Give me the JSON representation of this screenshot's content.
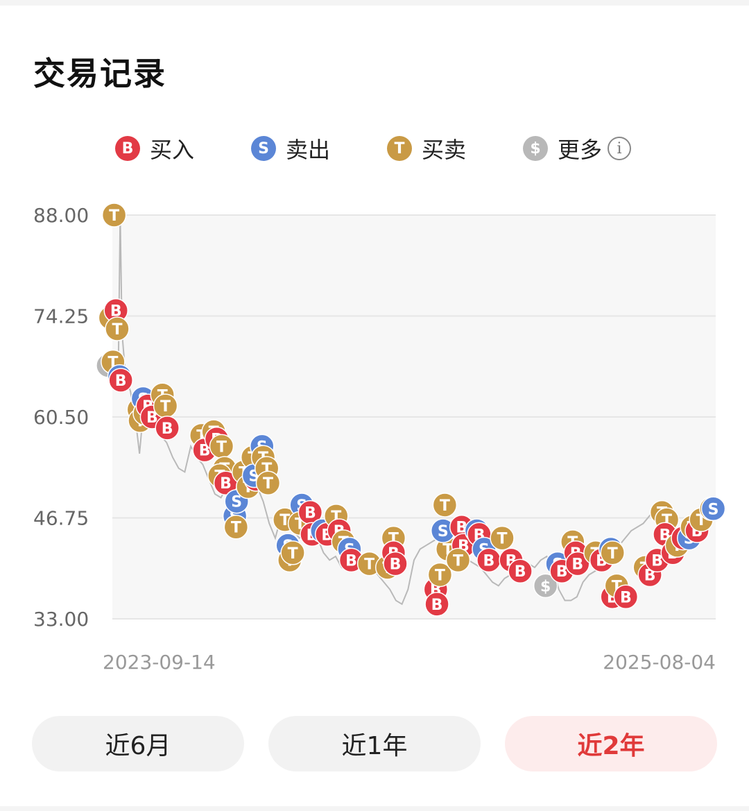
{
  "header": {
    "title": "交易记录"
  },
  "legend": [
    {
      "marker": "B",
      "label": "买入",
      "color": "#e23a45"
    },
    {
      "marker": "S",
      "label": "卖出",
      "color": "#5b86d6"
    },
    {
      "marker": "T",
      "label": "买卖",
      "color": "#c99a45"
    },
    {
      "marker": "$",
      "label": "更多",
      "color": "#b8b8b8",
      "icon": "info-icon"
    }
  ],
  "tabs": [
    {
      "label": "近6月",
      "active": false
    },
    {
      "label": "近1年",
      "active": false
    },
    {
      "label": "近2年",
      "active": true
    }
  ],
  "chart_data": {
    "type": "line",
    "x_start_label": "2023-09-14",
    "x_end_label": "2025-08-04",
    "y_ticks": [
      "88.00",
      "74.25",
      "60.50",
      "46.75",
      "33.00"
    ],
    "ylim": [
      33,
      88
    ],
    "xlim": [
      0,
      100
    ],
    "grid": true,
    "line_color": "#b9b9b9",
    "price": [
      [
        0,
        68
      ],
      [
        1,
        67.5
      ],
      [
        1.3,
        88
      ],
      [
        1.6,
        72
      ],
      [
        2.2,
        66
      ],
      [
        3,
        64
      ],
      [
        4,
        59
      ],
      [
        4.5,
        55.5
      ],
      [
        5,
        60
      ],
      [
        6,
        62
      ],
      [
        7,
        61
      ],
      [
        8,
        58
      ],
      [
        9,
        57
      ],
      [
        10,
        55
      ],
      [
        11,
        53.5
      ],
      [
        12,
        53
      ],
      [
        13,
        56.5
      ],
      [
        14,
        55
      ],
      [
        15,
        54
      ],
      [
        16,
        52
      ],
      [
        17,
        50
      ],
      [
        18,
        49.5
      ],
      [
        19,
        51
      ],
      [
        20,
        52.5
      ],
      [
        21,
        54
      ],
      [
        22,
        55
      ],
      [
        23,
        53
      ],
      [
        24,
        51
      ],
      [
        25,
        49
      ],
      [
        26,
        46
      ],
      [
        27,
        44
      ],
      [
        28,
        47
      ],
      [
        29,
        46.5
      ],
      [
        30,
        45
      ],
      [
        31,
        44
      ],
      [
        32,
        44.5
      ],
      [
        33,
        45.5
      ],
      [
        34,
        44
      ],
      [
        35,
        42
      ],
      [
        36,
        41
      ],
      [
        37,
        41.5
      ],
      [
        38,
        40
      ],
      [
        39,
        39.5
      ],
      [
        40,
        39.5
      ],
      [
        41,
        40
      ],
      [
        42,
        41.5
      ],
      [
        43,
        40
      ],
      [
        44,
        39
      ],
      [
        45,
        38
      ],
      [
        46,
        37
      ],
      [
        47,
        35.5
      ],
      [
        48,
        35
      ],
      [
        49,
        37
      ],
      [
        50,
        41
      ],
      [
        51,
        42.5
      ],
      [
        52,
        43
      ],
      [
        53,
        43.5
      ],
      [
        54,
        44
      ],
      [
        55,
        43
      ],
      [
        56,
        42
      ],
      [
        57,
        43
      ],
      [
        58,
        42
      ],
      [
        59,
        41
      ],
      [
        60,
        40.5
      ],
      [
        61,
        40
      ],
      [
        62,
        39
      ],
      [
        63,
        38
      ],
      [
        64,
        37.5
      ],
      [
        65,
        38.5
      ],
      [
        66,
        39
      ],
      [
        67,
        40.5
      ],
      [
        68,
        41
      ],
      [
        69,
        40.5
      ],
      [
        70,
        40
      ],
      [
        71,
        41
      ],
      [
        72,
        41.5
      ],
      [
        73,
        40
      ],
      [
        74,
        37
      ],
      [
        75,
        35.5
      ],
      [
        76,
        35.5
      ],
      [
        77,
        36
      ],
      [
        78,
        38
      ],
      [
        79,
        39
      ],
      [
        80,
        39.5
      ],
      [
        81,
        40
      ],
      [
        82,
        41
      ],
      [
        83,
        42
      ],
      [
        84,
        43
      ],
      [
        85,
        44
      ],
      [
        86,
        45
      ],
      [
        87,
        45.5
      ],
      [
        88,
        46
      ],
      [
        89,
        47
      ],
      [
        90,
        48
      ]
    ],
    "markers": [
      {
        "t": "T",
        "x": 0.3,
        "y": 88
      },
      {
        "t": "$",
        "x": -0.7,
        "y": 67.5
      },
      {
        "t": "T",
        "x": -0.3,
        "y": 74
      },
      {
        "t": "B",
        "x": 0.6,
        "y": 75
      },
      {
        "t": "T",
        "x": 0.8,
        "y": 72.5
      },
      {
        "t": "T",
        "x": 0.1,
        "y": 68
      },
      {
        "t": "S",
        "x": 1.2,
        "y": 66
      },
      {
        "t": "B",
        "x": 1.4,
        "y": 65.5
      },
      {
        "t": "T",
        "x": 4.4,
        "y": 61.5
      },
      {
        "t": "T",
        "x": 4.6,
        "y": 60
      },
      {
        "t": "S",
        "x": 5.1,
        "y": 63
      },
      {
        "t": "T",
        "x": 5.4,
        "y": 61
      },
      {
        "t": "B",
        "x": 5.9,
        "y": 62
      },
      {
        "t": "B",
        "x": 6.6,
        "y": 60.5
      },
      {
        "t": "T",
        "x": 8.3,
        "y": 63.5
      },
      {
        "t": "T",
        "x": 8.8,
        "y": 62
      },
      {
        "t": "B",
        "x": 9.1,
        "y": 59
      },
      {
        "t": "T",
        "x": 14.8,
        "y": 58
      },
      {
        "t": "B",
        "x": 15.3,
        "y": 56
      },
      {
        "t": "T",
        "x": 16.8,
        "y": 58.5
      },
      {
        "t": "B",
        "x": 17.3,
        "y": 57.5
      },
      {
        "t": "T",
        "x": 18.1,
        "y": 56.5
      },
      {
        "t": "T",
        "x": 18.6,
        "y": 53.5
      },
      {
        "t": "T",
        "x": 17.8,
        "y": 52.5
      },
      {
        "t": "B",
        "x": 18.8,
        "y": 51.5
      },
      {
        "t": "S",
        "x": 20.3,
        "y": 47
      },
      {
        "t": "S",
        "x": 20.6,
        "y": 49
      },
      {
        "t": "T",
        "x": 20.5,
        "y": 45.5
      },
      {
        "t": "T",
        "x": 21.8,
        "y": 53
      },
      {
        "t": "T",
        "x": 22.5,
        "y": 51
      },
      {
        "t": "B",
        "x": 23.8,
        "y": 52
      },
      {
        "t": "T",
        "x": 23.3,
        "y": 55
      },
      {
        "t": "S",
        "x": 23.5,
        "y": 52.5
      },
      {
        "t": "S",
        "x": 24.8,
        "y": 56.5
      },
      {
        "t": "T",
        "x": 25.0,
        "y": 55
      },
      {
        "t": "T",
        "x": 25.6,
        "y": 53.5
      },
      {
        "t": "T",
        "x": 25.8,
        "y": 51.5
      },
      {
        "t": "T",
        "x": 28.6,
        "y": 46.5
      },
      {
        "t": "S",
        "x": 29.1,
        "y": 43
      },
      {
        "t": "T",
        "x": 29.4,
        "y": 41
      },
      {
        "t": "T",
        "x": 29.9,
        "y": 42
      },
      {
        "t": "S",
        "x": 31.4,
        "y": 48.5
      },
      {
        "t": "T",
        "x": 31.1,
        "y": 46
      },
      {
        "t": "B",
        "x": 32.8,
        "y": 47.5
      },
      {
        "t": "B",
        "x": 33.1,
        "y": 44.5
      },
      {
        "t": "S",
        "x": 34.8,
        "y": 45
      },
      {
        "t": "B",
        "x": 35.6,
        "y": 44.5
      },
      {
        "t": "T",
        "x": 37.1,
        "y": 47
      },
      {
        "t": "B",
        "x": 37.6,
        "y": 45
      },
      {
        "t": "T",
        "x": 38.3,
        "y": 43.5
      },
      {
        "t": "S",
        "x": 39.3,
        "y": 42.5
      },
      {
        "t": "B",
        "x": 39.6,
        "y": 41
      },
      {
        "t": "T",
        "x": 42.6,
        "y": 40.5
      },
      {
        "t": "T",
        "x": 45.6,
        "y": 40
      },
      {
        "t": "T",
        "x": 46.6,
        "y": 44
      },
      {
        "t": "B",
        "x": 46.6,
        "y": 42
      },
      {
        "t": "B",
        "x": 46.9,
        "y": 40.5
      },
      {
        "t": "B",
        "x": 53.6,
        "y": 37
      },
      {
        "t": "B",
        "x": 53.8,
        "y": 35
      },
      {
        "t": "T",
        "x": 54.3,
        "y": 39
      },
      {
        "t": "T",
        "x": 55.6,
        "y": 42.5
      },
      {
        "t": "S",
        "x": 54.8,
        "y": 45
      },
      {
        "t": "T",
        "x": 55.1,
        "y": 48.5
      },
      {
        "t": "B",
        "x": 57.9,
        "y": 45.5
      },
      {
        "t": "B",
        "x": 58.2,
        "y": 43
      },
      {
        "t": "T",
        "x": 57.3,
        "y": 41
      },
      {
        "t": "S",
        "x": 60.4,
        "y": 45
      },
      {
        "t": "B",
        "x": 60.8,
        "y": 44.5
      },
      {
        "t": "S",
        "x": 61.6,
        "y": 42.5
      },
      {
        "t": "B",
        "x": 62.4,
        "y": 41
      },
      {
        "t": "T",
        "x": 64.6,
        "y": 44
      },
      {
        "t": "B",
        "x": 66.1,
        "y": 41
      },
      {
        "t": "B",
        "x": 67.6,
        "y": 39.5
      },
      {
        "t": "$",
        "x": 71.8,
        "y": 37.5
      },
      {
        "t": "S",
        "x": 73.8,
        "y": 40.5
      },
      {
        "t": "B",
        "x": 74.5,
        "y": 39.5
      },
      {
        "t": "T",
        "x": 76.3,
        "y": 43.5
      },
      {
        "t": "B",
        "x": 76.8,
        "y": 42
      },
      {
        "t": "B",
        "x": 77.1,
        "y": 40.5
      },
      {
        "t": "T",
        "x": 80.1,
        "y": 42
      },
      {
        "t": "B",
        "x": 81.1,
        "y": 41
      },
      {
        "t": "S",
        "x": 82.6,
        "y": 42.5
      },
      {
        "t": "T",
        "x": 82.9,
        "y": 42
      },
      {
        "t": "B",
        "x": 82.9,
        "y": 36
      },
      {
        "t": "T",
        "x": 83.6,
        "y": 37.5
      },
      {
        "t": "B",
        "x": 85.1,
        "y": 36
      },
      {
        "t": "T",
        "x": 88.3,
        "y": 40
      },
      {
        "t": "B",
        "x": 89.1,
        "y": 39
      },
      {
        "t": "B",
        "x": 90.3,
        "y": 41
      },
      {
        "t": "T",
        "x": 91.1,
        "y": 47.5
      },
      {
        "t": "T",
        "x": 91.9,
        "y": 46.5
      },
      {
        "t": "B",
        "x": 91.6,
        "y": 44.5
      },
      {
        "t": "B",
        "x": 92.9,
        "y": 42
      },
      {
        "t": "T",
        "x": 93.6,
        "y": 43
      },
      {
        "t": "B",
        "x": 94.6,
        "y": 44
      },
      {
        "t": "S",
        "x": 95.6,
        "y": 44
      },
      {
        "t": "T",
        "x": 96.1,
        "y": 45.5
      },
      {
        "t": "B",
        "x": 96.9,
        "y": 45
      },
      {
        "t": "T",
        "x": 97.6,
        "y": 46.5
      },
      {
        "t": "T",
        "x": 99.3,
        "y": 48
      },
      {
        "t": "S",
        "x": 99.6,
        "y": 48
      }
    ]
  }
}
